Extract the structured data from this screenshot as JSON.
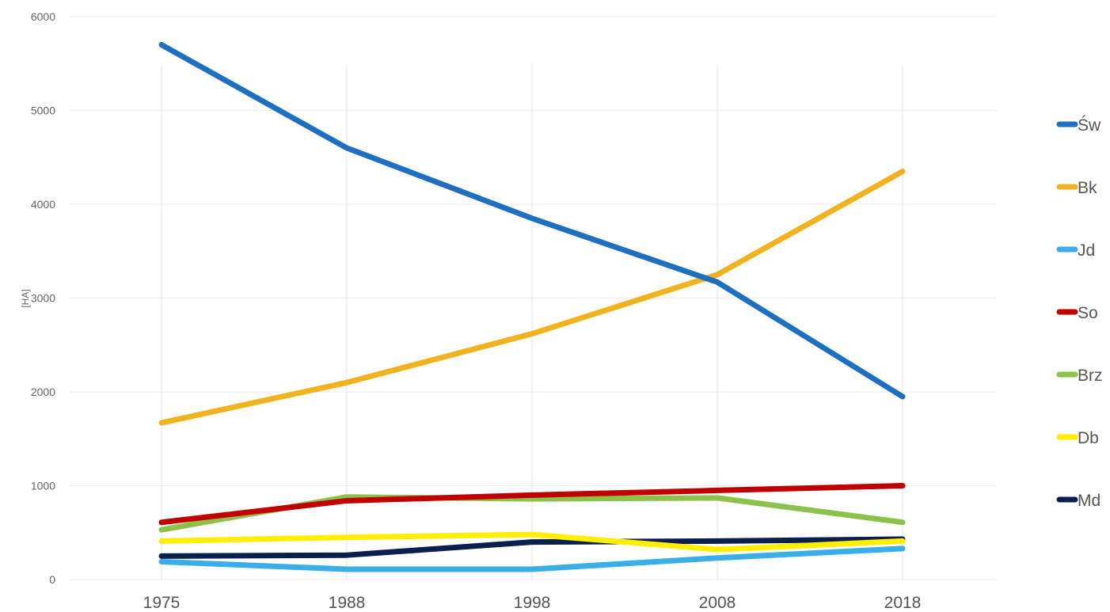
{
  "chart_data": {
    "type": "line",
    "ylabel": "[HA]",
    "xlabel": "",
    "categories": [
      "1975",
      "1988",
      "1998",
      "2008",
      "2018"
    ],
    "ylim": [
      0,
      6000
    ],
    "yticks": [
      0,
      1000,
      2000,
      3000,
      4000,
      5000,
      6000
    ],
    "grid": true,
    "legend_position": "right",
    "series": [
      {
        "name": "Św",
        "color": "#1f6fc0",
        "values": [
          5700,
          4600,
          3850,
          3170,
          1950
        ]
      },
      {
        "name": "Bk",
        "color": "#f0b21e",
        "values": [
          1670,
          2100,
          2620,
          3250,
          4350
        ]
      },
      {
        "name": "Jd",
        "color": "#3aaee8",
        "values": [
          190,
          110,
          110,
          230,
          330
        ]
      },
      {
        "name": "So",
        "color": "#c00000",
        "values": [
          610,
          840,
          900,
          950,
          1000
        ]
      },
      {
        "name": "Brz",
        "color": "#8bc34a",
        "values": [
          530,
          880,
          860,
          870,
          610
        ]
      },
      {
        "name": "Db",
        "color": "#ffee00",
        "values": [
          410,
          450,
          480,
          320,
          410
        ]
      },
      {
        "name": "Md",
        "color": "#0b1f4d",
        "values": [
          250,
          260,
          400,
          410,
          430
        ]
      }
    ]
  }
}
